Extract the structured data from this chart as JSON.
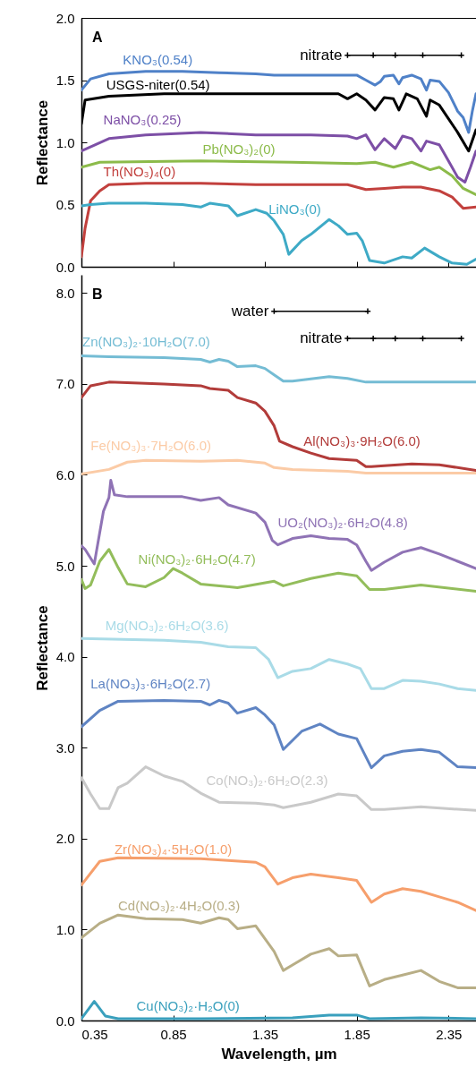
{
  "chart_data": [
    {
      "type": "line",
      "ylabel": "Reflectance",
      "xlim": [
        0.35,
        2.5
      ],
      "ylim": [
        0,
        2
      ],
      "xticks": [
        0.35,
        0.85,
        1.35,
        1.85,
        2.35
      ],
      "yticks": [
        {
          "value": 0,
          "label": "0.0"
        },
        0.5,
        {
          "value": 1,
          "label": "1.0"
        },
        1.5,
        {
          "value": 2,
          "label": "2.0"
        }
      ],
      "tick_labels": "y",
      "grid": false,
      "marker": "none",
      "line_style": "solid",
      "annotations": [
        "A"
      ],
      "series": [
        {
          "name": "KNO₃(0.54)",
          "color": "#4f81c8",
          "x": [
            0.35,
            0.4,
            0.5,
            0.7,
            0.9,
            1.1,
            1.3,
            1.4,
            1.6,
            1.8,
            1.85,
            1.9,
            1.95,
            1.98,
            2.0,
            2.05,
            2.08,
            2.1,
            2.15,
            2.2,
            2.23,
            2.25,
            2.3,
            2.35,
            2.4,
            2.43,
            2.46,
            2.48,
            2.5
          ],
          "values": [
            1.42,
            1.51,
            1.55,
            1.57,
            1.57,
            1.56,
            1.55,
            1.54,
            1.54,
            1.54,
            1.54,
            1.5,
            1.46,
            1.49,
            1.53,
            1.54,
            1.47,
            1.52,
            1.54,
            1.51,
            1.42,
            1.5,
            1.49,
            1.4,
            1.25,
            1.2,
            1.08,
            1.25,
            1.39
          ]
        },
        {
          "name": "USGS-niter(0.54)",
          "color": "#000000",
          "x": [
            0.35,
            0.37,
            0.5,
            0.8,
            1.2,
            1.5,
            1.75,
            1.8,
            1.85,
            1.9,
            1.95,
            2.0,
            2.05,
            2.08,
            2.12,
            2.18,
            2.23,
            2.25,
            2.3,
            2.35,
            2.4,
            2.46,
            2.5
          ],
          "values": [
            1.15,
            1.34,
            1.37,
            1.39,
            1.39,
            1.39,
            1.39,
            1.35,
            1.39,
            1.34,
            1.26,
            1.36,
            1.35,
            1.26,
            1.39,
            1.35,
            1.21,
            1.34,
            1.3,
            1.19,
            1.08,
            0.93,
            1.1
          ]
        },
        {
          "name": "NaNO₃(0.25)",
          "color": "#7d4fa6",
          "x": [
            0.35,
            0.5,
            0.7,
            1.0,
            1.3,
            1.6,
            1.8,
            1.85,
            1.9,
            1.95,
            2.0,
            2.06,
            2.1,
            2.15,
            2.2,
            2.23,
            2.3,
            2.35,
            2.4,
            2.44,
            2.47,
            2.5
          ],
          "values": [
            0.93,
            1.03,
            1.06,
            1.08,
            1.06,
            1.06,
            1.05,
            1.03,
            1.06,
            0.94,
            1.03,
            0.95,
            1.05,
            1.03,
            0.93,
            1.01,
            0.98,
            0.85,
            0.72,
            0.68,
            0.8,
            0.93
          ]
        },
        {
          "name": "Pb(NO₃)₂(0)",
          "color": "#8cbb4a",
          "x": [
            0.35,
            0.45,
            1.0,
            1.5,
            1.85,
            1.95,
            2.05,
            2.15,
            2.25,
            2.3,
            2.37,
            2.43,
            2.5
          ],
          "values": [
            0.8,
            0.84,
            0.85,
            0.84,
            0.83,
            0.84,
            0.8,
            0.84,
            0.78,
            0.8,
            0.73,
            0.63,
            0.58
          ]
        },
        {
          "name": "Th(NO₃)₄(0)",
          "color": "#c2403d",
          "x": [
            0.35,
            0.37,
            0.4,
            0.45,
            0.5,
            0.7,
            1.0,
            1.3,
            1.6,
            1.8,
            1.9,
            2.0,
            2.1,
            2.2,
            2.3,
            2.37,
            2.43,
            2.5
          ],
          "values": [
            0.08,
            0.31,
            0.53,
            0.61,
            0.66,
            0.67,
            0.67,
            0.66,
            0.66,
            0.66,
            0.62,
            0.63,
            0.64,
            0.64,
            0.61,
            0.56,
            0.47,
            0.48
          ]
        },
        {
          "name": "LiNO₃(0)",
          "color": "#3eaac6",
          "x": [
            0.35,
            0.4,
            0.5,
            0.7,
            0.9,
            1.0,
            1.05,
            1.15,
            1.2,
            1.3,
            1.36,
            1.4,
            1.45,
            1.48,
            1.55,
            1.6,
            1.7,
            1.75,
            1.8,
            1.85,
            1.88,
            1.92,
            2.0,
            2.1,
            2.15,
            2.22,
            2.3,
            2.37,
            2.45,
            2.5
          ],
          "values": [
            0.49,
            0.5,
            0.51,
            0.51,
            0.5,
            0.48,
            0.51,
            0.49,
            0.41,
            0.46,
            0.43,
            0.37,
            0.26,
            0.1,
            0.21,
            0.26,
            0.38,
            0.33,
            0.26,
            0.27,
            0.21,
            0.05,
            0.03,
            0.08,
            0.07,
            0.15,
            0.08,
            0.03,
            0.02,
            0.06
          ]
        },
        {
          "name": "nitrate",
          "color": "#000000",
          "marker": "cross",
          "x": [
            1.8,
            1.94,
            2.06,
            2.21,
            2.42
          ],
          "values": [
            1.7,
            1.7,
            1.7,
            1.7,
            1.7
          ]
        }
      ]
    },
    {
      "type": "line",
      "xlabel": "Wavelength, µm",
      "ylabel": "Reflectance",
      "xlim": [
        0.35,
        2.5
      ],
      "ylim": [
        0,
        8.2
      ],
      "xticks": [
        0.35,
        0.85,
        1.35,
        1.85,
        2.35
      ],
      "yticks": [
        {
          "value": 0,
          "label": "0.0"
        },
        {
          "value": 1,
          "label": "1.0"
        },
        {
          "value": 2,
          "label": "2.0"
        },
        {
          "value": 3,
          "label": "3.0"
        },
        {
          "value": 4,
          "label": "4.0"
        },
        {
          "value": 5,
          "label": "5.0"
        },
        {
          "value": 6,
          "label": "6.0"
        },
        {
          "value": 7,
          "label": "7.0"
        },
        {
          "value": 8,
          "label": "8.0"
        }
      ],
      "grid": false,
      "marker": "none",
      "line_style": "solid",
      "annotations": [
        "B"
      ],
      "series": [
        {
          "name": "Zn(NO₃)₂·10H₂O(7.0)",
          "color": "#74bcd4",
          "x": [
            0.35,
            0.5,
            0.8,
            1.0,
            1.05,
            1.1,
            1.15,
            1.2,
            1.3,
            1.35,
            1.4,
            1.45,
            1.5,
            1.7,
            1.8,
            1.9,
            2.0,
            2.5
          ],
          "values": [
            7.31,
            7.3,
            7.29,
            7.27,
            7.24,
            7.27,
            7.25,
            7.19,
            7.2,
            7.17,
            7.1,
            7.03,
            7.03,
            7.08,
            7.06,
            7.02,
            7.02,
            7.02
          ]
        },
        {
          "name": "Al(NO₃)₃·9H₂O(6.0)",
          "color": "#b23c3a",
          "x": [
            0.35,
            0.4,
            0.5,
            0.8,
            1.0,
            1.05,
            1.15,
            1.2,
            1.3,
            1.35,
            1.4,
            1.43,
            1.5,
            1.6,
            1.7,
            1.85,
            1.9,
            1.93,
            2.0,
            2.15,
            2.3,
            2.5
          ],
          "values": [
            6.85,
            6.98,
            7.02,
            7.0,
            6.98,
            6.95,
            6.93,
            6.85,
            6.79,
            6.7,
            6.54,
            6.37,
            6.31,
            6.24,
            6.18,
            6.16,
            6.09,
            6.09,
            6.1,
            6.12,
            6.11,
            6.05
          ]
        },
        {
          "name": "Fe(NO₃)₃·7H₂O(6.0)",
          "color": "#fbcba6",
          "x": [
            0.35,
            0.5,
            0.6,
            0.7,
            1.0,
            1.2,
            1.35,
            1.4,
            1.5,
            1.8,
            1.9,
            2.5
          ],
          "values": [
            6.01,
            6.06,
            6.14,
            6.16,
            6.15,
            6.16,
            6.13,
            6.08,
            6.06,
            6.04,
            6.02,
            6.02
          ]
        },
        {
          "name": "UO₂(NO₃)₂·6H₂O(4.8)",
          "color": "#8f73b5",
          "x": [
            0.35,
            0.37,
            0.42,
            0.47,
            0.5,
            0.51,
            0.53,
            0.6,
            0.9,
            1.0,
            1.1,
            1.15,
            1.3,
            1.35,
            1.39,
            1.42,
            1.5,
            1.6,
            1.7,
            1.8,
            1.85,
            1.9,
            1.93,
            2.0,
            2.1,
            2.2,
            2.3,
            2.4,
            2.5
          ],
          "values": [
            5.22,
            5.18,
            5.02,
            5.6,
            5.75,
            5.94,
            5.78,
            5.76,
            5.76,
            5.72,
            5.75,
            5.67,
            5.58,
            5.48,
            5.28,
            5.23,
            5.3,
            5.33,
            5.3,
            5.29,
            5.23,
            5.05,
            4.95,
            5.04,
            5.15,
            5.2,
            5.13,
            5.05,
            4.97
          ]
        },
        {
          "name": "Ni(NO₃)₂·6H₂O(4.7)",
          "color": "#93bd5b",
          "x": [
            0.35,
            0.37,
            0.4,
            0.45,
            0.5,
            0.55,
            0.6,
            0.7,
            0.8,
            0.85,
            0.9,
            1.0,
            1.2,
            1.4,
            1.45,
            1.6,
            1.75,
            1.85,
            1.92,
            2.0,
            2.2,
            2.5
          ],
          "values": [
            4.85,
            4.75,
            4.79,
            5.05,
            5.18,
            4.98,
            4.8,
            4.77,
            4.87,
            4.97,
            4.92,
            4.8,
            4.76,
            4.83,
            4.78,
            4.86,
            4.92,
            4.89,
            4.74,
            4.74,
            4.79,
            4.72
          ]
        },
        {
          "name": "Mg(NO₃)₂·6H₂O(3.6)",
          "color": "#a9dbe7",
          "x": [
            0.35,
            0.8,
            1.0,
            1.15,
            1.3,
            1.37,
            1.42,
            1.5,
            1.6,
            1.7,
            1.8,
            1.87,
            1.93,
            2.0,
            2.1,
            2.2,
            2.3,
            2.4,
            2.5
          ],
          "values": [
            4.2,
            4.18,
            4.16,
            4.11,
            4.1,
            3.97,
            3.77,
            3.84,
            3.87,
            3.97,
            3.92,
            3.87,
            3.65,
            3.65,
            3.74,
            3.73,
            3.7,
            3.65,
            3.63
          ]
        },
        {
          "name": "La(NO₃)₃·6H₂O(2.7)",
          "color": "#5f84c3",
          "x": [
            0.35,
            0.45,
            0.55,
            0.8,
            1.0,
            1.05,
            1.1,
            1.15,
            1.2,
            1.3,
            1.35,
            1.4,
            1.45,
            1.55,
            1.65,
            1.75,
            1.85,
            1.93,
            2.0,
            2.1,
            2.2,
            2.3,
            2.4,
            2.5
          ],
          "values": [
            3.23,
            3.41,
            3.51,
            3.52,
            3.51,
            3.47,
            3.52,
            3.49,
            3.38,
            3.44,
            3.36,
            3.25,
            2.98,
            3.18,
            3.26,
            3.15,
            3.1,
            2.78,
            2.91,
            2.96,
            2.98,
            2.95,
            2.79,
            2.78
          ]
        },
        {
          "name": "Co(NO₃)₂·6H₂O(2.3)",
          "color": "#c9c9c9",
          "x": [
            0.35,
            0.4,
            0.45,
            0.5,
            0.55,
            0.6,
            0.7,
            0.8,
            0.9,
            1.0,
            1.1,
            1.3,
            1.4,
            1.45,
            1.6,
            1.75,
            1.85,
            1.93,
            2.0,
            2.2,
            2.5
          ],
          "values": [
            2.67,
            2.49,
            2.33,
            2.33,
            2.56,
            2.61,
            2.79,
            2.69,
            2.63,
            2.5,
            2.4,
            2.39,
            2.37,
            2.34,
            2.4,
            2.49,
            2.47,
            2.32,
            2.32,
            2.35,
            2.31
          ]
        },
        {
          "name": "Zr(NO₃)₄·5H₂O(1.0)",
          "color": "#f69f6c",
          "x": [
            0.35,
            0.45,
            0.55,
            1.0,
            1.15,
            1.3,
            1.35,
            1.42,
            1.5,
            1.6,
            1.75,
            1.85,
            1.93,
            2.0,
            2.1,
            2.2,
            2.3,
            2.4,
            2.5
          ],
          "values": [
            1.49,
            1.75,
            1.79,
            1.78,
            1.76,
            1.74,
            1.69,
            1.5,
            1.57,
            1.61,
            1.57,
            1.54,
            1.3,
            1.39,
            1.45,
            1.42,
            1.36,
            1.3,
            1.21
          ]
        },
        {
          "name": "Cd(NO₃)₂·4H₂O(0.3)",
          "color": "#b8ae86",
          "x": [
            0.35,
            0.45,
            0.55,
            0.7,
            0.9,
            1.0,
            1.1,
            1.15,
            1.2,
            1.3,
            1.4,
            1.45,
            1.5,
            1.6,
            1.7,
            1.75,
            1.85,
            1.92,
            2.0,
            2.1,
            2.2,
            2.3,
            2.4,
            2.5
          ],
          "values": [
            0.91,
            1.07,
            1.16,
            1.12,
            1.11,
            1.07,
            1.13,
            1.11,
            1.01,
            1.04,
            0.76,
            0.55,
            0.61,
            0.73,
            0.79,
            0.71,
            0.72,
            0.38,
            0.45,
            0.5,
            0.55,
            0.43,
            0.36,
            0.36
          ]
        },
        {
          "name": "Cu(NO₃)₂·H₂O(0)",
          "color": "#3aa0bd",
          "x": [
            0.35,
            0.42,
            0.48,
            0.55,
            1.0,
            1.5,
            1.7,
            1.85,
            1.92,
            2.2,
            2.5
          ],
          "values": [
            0.02,
            0.21,
            0.05,
            0.02,
            0.02,
            0.03,
            0.06,
            0.06,
            0.02,
            0.03,
            0.02
          ]
        },
        {
          "name": "water",
          "color": "#000000",
          "marker": "cross",
          "x": [
            1.4,
            1.91
          ],
          "values": [
            7.8,
            7.8
          ]
        },
        {
          "name": "nitrate",
          "color": "#000000",
          "marker": "cross",
          "x": [
            1.8,
            1.94,
            2.06,
            2.21,
            2.42
          ],
          "values": [
            7.5,
            7.5,
            7.5,
            7.5,
            7.5
          ]
        }
      ]
    }
  ]
}
